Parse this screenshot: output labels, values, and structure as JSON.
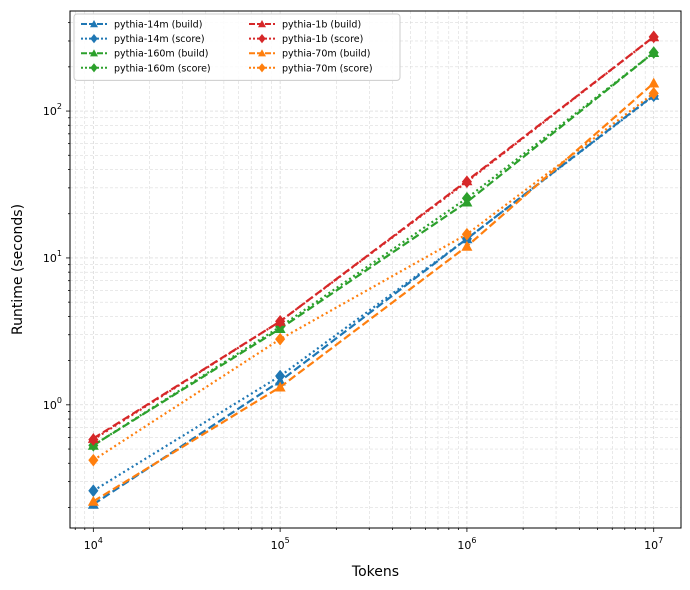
{
  "chart_data": {
    "type": "line",
    "xlabel": "Tokens",
    "ylabel": "Runtime (seconds)",
    "xscale": "log",
    "yscale": "log",
    "xlim": [
      7500,
      14000000
    ],
    "ylim": [
      0.145,
      480
    ],
    "grid": true,
    "legend_position": "top-left",
    "x_ticks": [
      {
        "value": 10000,
        "base": "10",
        "exp": "4"
      },
      {
        "value": 100000,
        "base": "10",
        "exp": "5"
      },
      {
        "value": 1000000,
        "base": "10",
        "exp": "6"
      },
      {
        "value": 10000000,
        "base": "10",
        "exp": "7"
      }
    ],
    "y_ticks": [
      {
        "value": 1,
        "base": "10",
        "exp": "0"
      },
      {
        "value": 10,
        "base": "10",
        "exp": "1"
      },
      {
        "value": 100,
        "base": "10",
        "exp": "2"
      }
    ],
    "x": [
      10000,
      100000,
      1000000,
      10000000
    ],
    "series": [
      {
        "name": "pythia-14m (build)",
        "color": "#1f77b4",
        "linestyle": "dashed",
        "marker": "triangle",
        "values": [
          0.21,
          1.45,
          13.5,
          128
        ]
      },
      {
        "name": "pythia-14m (score)",
        "color": "#1f77b4",
        "linestyle": "dotted",
        "marker": "diamond",
        "values": [
          0.26,
          1.57,
          13.5,
          127
        ]
      },
      {
        "name": "pythia-160m (build)",
        "color": "#2ca02c",
        "linestyle": "dashed",
        "marker": "triangle",
        "values": [
          0.53,
          3.3,
          24,
          250
        ]
      },
      {
        "name": "pythia-160m (score)",
        "color": "#2ca02c",
        "linestyle": "dotted",
        "marker": "diamond",
        "values": [
          0.53,
          3.4,
          25.5,
          250
        ]
      },
      {
        "name": "pythia-1b (build)",
        "color": "#d62728",
        "linestyle": "dashed",
        "marker": "triangle",
        "values": [
          0.59,
          3.7,
          33.5,
          320
        ]
      },
      {
        "name": "pythia-1b (score)",
        "color": "#d62728",
        "linestyle": "dotted",
        "marker": "diamond",
        "values": [
          0.58,
          3.7,
          33,
          320
        ]
      },
      {
        "name": "pythia-70m (build)",
        "color": "#ff7f0e",
        "linestyle": "dashed",
        "marker": "triangle",
        "values": [
          0.22,
          1.32,
          12,
          155
        ]
      },
      {
        "name": "pythia-70m (score)",
        "color": "#ff7f0e",
        "linestyle": "dotted",
        "marker": "diamond",
        "values": [
          0.42,
          2.8,
          14.5,
          132
        ]
      }
    ]
  }
}
